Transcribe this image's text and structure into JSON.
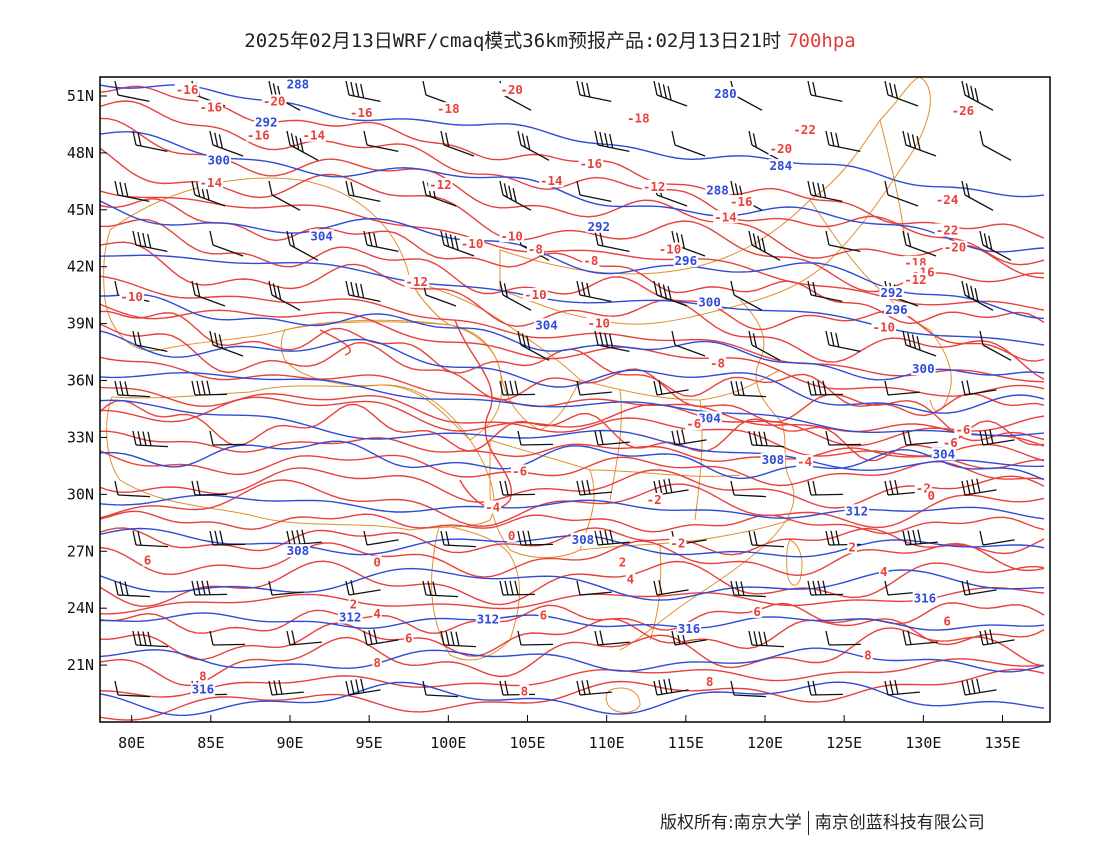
{
  "title": {
    "main": "2025年02月13日WRF/cmaq模式36km预报产品:02月13日21时",
    "level": "700hpa"
  },
  "colors": {
    "temperature": "#e8413c",
    "geopotential": "#2f4bd8",
    "boundary": "#e09030",
    "wind_barb": "#111111",
    "frame": "#000000"
  },
  "map": {
    "lon_range": [
      78,
      138
    ],
    "lat_range": [
      18,
      52
    ],
    "lon_ticks": [
      80,
      85,
      90,
      95,
      100,
      105,
      110,
      115,
      120,
      125,
      130,
      135
    ],
    "lon_tick_labels": [
      "80E",
      "85E",
      "90E",
      "95E",
      "100E",
      "105E",
      "110E",
      "115E",
      "120E",
      "125E",
      "130E",
      "135E"
    ],
    "lat_ticks": [
      21,
      24,
      27,
      30,
      33,
      36,
      39,
      42,
      45,
      48,
      51
    ],
    "lat_tick_labels": [
      "21N",
      "24N",
      "27N",
      "30N",
      "33N",
      "36N",
      "39N",
      "42N",
      "45N",
      "48N",
      "51N"
    ],
    "geopotential_labels": [
      {
        "text": "288",
        "lon": 90.5,
        "lat": 51.5
      },
      {
        "text": "292",
        "lon": 88.5,
        "lat": 49.5
      },
      {
        "text": "300",
        "lon": 85.5,
        "lat": 47.5
      },
      {
        "text": "304",
        "lon": 92,
        "lat": 43.5
      },
      {
        "text": "280",
        "lon": 117.5,
        "lat": 51
      },
      {
        "text": "284",
        "lon": 121,
        "lat": 47.2
      },
      {
        "text": "288",
        "lon": 117,
        "lat": 45.9
      },
      {
        "text": "292",
        "lon": 109.5,
        "lat": 44
      },
      {
        "text": "296",
        "lon": 115,
        "lat": 42.2
      },
      {
        "text": "300",
        "lon": 116.5,
        "lat": 40
      },
      {
        "text": "304",
        "lon": 106.2,
        "lat": 38.8
      },
      {
        "text": "292",
        "lon": 128,
        "lat": 40.5
      },
      {
        "text": "296",
        "lon": 128.3,
        "lat": 39.6
      },
      {
        "text": "300",
        "lon": 130,
        "lat": 36.5
      },
      {
        "text": "304",
        "lon": 116.5,
        "lat": 33.9
      },
      {
        "text": "304",
        "lon": 131.3,
        "lat": 32
      },
      {
        "text": "308",
        "lon": 120.5,
        "lat": 31.7
      },
      {
        "text": "312",
        "lon": 125.8,
        "lat": 29
      },
      {
        "text": "308",
        "lon": 90.5,
        "lat": 26.9
      },
      {
        "text": "308",
        "lon": 108.5,
        "lat": 27.5
      },
      {
        "text": "312",
        "lon": 93.8,
        "lat": 23.4
      },
      {
        "text": "312",
        "lon": 102.5,
        "lat": 23.3
      },
      {
        "text": "316",
        "lon": 115.2,
        "lat": 22.8
      },
      {
        "text": "316",
        "lon": 130.1,
        "lat": 24.4
      },
      {
        "text": "316",
        "lon": 84.5,
        "lat": 19.6
      }
    ],
    "temperature_labels": [
      {
        "text": "-16",
        "lon": 83.5,
        "lat": 51.2
      },
      {
        "text": "-16",
        "lon": 85,
        "lat": 50.3
      },
      {
        "text": "-20",
        "lon": 89,
        "lat": 50.6
      },
      {
        "text": "-16",
        "lon": 94.5,
        "lat": 50
      },
      {
        "text": "-16",
        "lon": 88,
        "lat": 48.8
      },
      {
        "text": "-14",
        "lon": 91.5,
        "lat": 48.8
      },
      {
        "text": "-14",
        "lon": 85,
        "lat": 46.3
      },
      {
        "text": "-18",
        "lon": 100,
        "lat": 50.2
      },
      {
        "text": "-12",
        "lon": 99.5,
        "lat": 46.2
      },
      {
        "text": "-16",
        "lon": 109,
        "lat": 47.3
      },
      {
        "text": "-14",
        "lon": 106.5,
        "lat": 46.4
      },
      {
        "text": "-20",
        "lon": 104,
        "lat": 51.2
      },
      {
        "text": "-18",
        "lon": 112,
        "lat": 49.7
      },
      {
        "text": "-12",
        "lon": 113,
        "lat": 46.1
      },
      {
        "text": "-22",
        "lon": 122.5,
        "lat": 49.1
      },
      {
        "text": "-20",
        "lon": 121,
        "lat": 48.1
      },
      {
        "text": "-16",
        "lon": 118.5,
        "lat": 45.3
      },
      {
        "text": "-14",
        "lon": 117.5,
        "lat": 44.5
      },
      {
        "text": "-26",
        "lon": 132.5,
        "lat": 50.1
      },
      {
        "text": "-24",
        "lon": 131.5,
        "lat": 45.4
      },
      {
        "text": "-22",
        "lon": 131.5,
        "lat": 43.8
      },
      {
        "text": "-20",
        "lon": 132,
        "lat": 42.9
      },
      {
        "text": "-18",
        "lon": 129.5,
        "lat": 42.1
      },
      {
        "text": "-16",
        "lon": 130,
        "lat": 41.6
      },
      {
        "text": "-12",
        "lon": 129.5,
        "lat": 41.2
      },
      {
        "text": "-10",
        "lon": 104,
        "lat": 43.5
      },
      {
        "text": "-10",
        "lon": 101.5,
        "lat": 43.1
      },
      {
        "text": "-8",
        "lon": 105.5,
        "lat": 42.8
      },
      {
        "text": "-8",
        "lon": 109,
        "lat": 42.2
      },
      {
        "text": "-10",
        "lon": 114,
        "lat": 42.8
      },
      {
        "text": "-12",
        "lon": 98,
        "lat": 41.1
      },
      {
        "text": "-10",
        "lon": 105.5,
        "lat": 40.4
      },
      {
        "text": "-10",
        "lon": 80,
        "lat": 40.3
      },
      {
        "text": "-10",
        "lon": 109.5,
        "lat": 38.9
      },
      {
        "text": "-10",
        "lon": 127.5,
        "lat": 38.7
      },
      {
        "text": "-8",
        "lon": 117,
        "lat": 36.8
      },
      {
        "text": "-6",
        "lon": 115.5,
        "lat": 33.6
      },
      {
        "text": "-6",
        "lon": 132.5,
        "lat": 33.3
      },
      {
        "text": "-6",
        "lon": 131.7,
        "lat": 32.6
      },
      {
        "text": "-6",
        "lon": 104.5,
        "lat": 31.1
      },
      {
        "text": "-4",
        "lon": 102.8,
        "lat": 29.2
      },
      {
        "text": "-4",
        "lon": 122.5,
        "lat": 31.6
      },
      {
        "text": "-2",
        "lon": 113,
        "lat": 29.6
      },
      {
        "text": "-2",
        "lon": 130,
        "lat": 30.2
      },
      {
        "text": "0",
        "lon": 104,
        "lat": 27.7
      },
      {
        "text": "0",
        "lon": 95.5,
        "lat": 26.3
      },
      {
        "text": "0",
        "lon": 130.5,
        "lat": 29.8
      },
      {
        "text": "-2",
        "lon": 114.5,
        "lat": 27.3
      },
      {
        "text": "2",
        "lon": 111,
        "lat": 26.3
      },
      {
        "text": "2",
        "lon": 125.5,
        "lat": 27.1
      },
      {
        "text": "2",
        "lon": 94,
        "lat": 24.1
      },
      {
        "text": "4",
        "lon": 111.5,
        "lat": 25.4
      },
      {
        "text": "4",
        "lon": 95.5,
        "lat": 23.6
      },
      {
        "text": "4",
        "lon": 127.5,
        "lat": 25.8
      },
      {
        "text": "6",
        "lon": 81,
        "lat": 26.4
      },
      {
        "text": "6",
        "lon": 97.5,
        "lat": 22.3
      },
      {
        "text": "6",
        "lon": 106,
        "lat": 23.5
      },
      {
        "text": "6",
        "lon": 119.5,
        "lat": 23.7
      },
      {
        "text": "6",
        "lon": 131.5,
        "lat": 23.2
      },
      {
        "text": "8",
        "lon": 84.5,
        "lat": 20.3
      },
      {
        "text": "8",
        "lon": 95.5,
        "lat": 21
      },
      {
        "text": "8",
        "lon": 126.5,
        "lat": 21.4
      },
      {
        "text": "8",
        "lon": 116.5,
        "lat": 20
      },
      {
        "text": "8",
        "lon": 104.8,
        "lat": 19.5
      }
    ]
  },
  "footer": {
    "copyright": "版权所有:南京大学",
    "company": "南京创蓝科技有限公司"
  }
}
